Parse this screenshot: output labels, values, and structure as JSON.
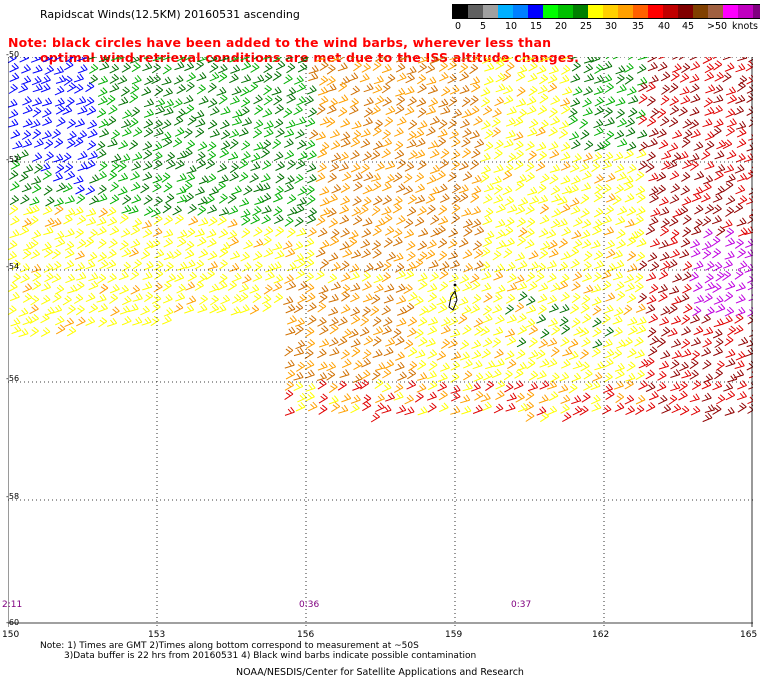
{
  "title": "Rapidscat Winds(12.5KM) 20160531 ascending",
  "note": {
    "line1": "Note: black circles have been added to the wind barbs, wherever less than",
    "line2": "optimal wind retrieval conditions are met due to the ISS altitude changes."
  },
  "legend": {
    "unit_label": "knots",
    "ticks": [
      "0",
      "5",
      "10",
      "15",
      "20",
      "25",
      "30",
      "35",
      "40",
      "45",
      ">50"
    ],
    "colors": [
      "#000000",
      "#606060",
      "#a0a0a0",
      "#00b0ff",
      "#0080ff",
      "#0000ff",
      "#00ff00",
      "#00c000",
      "#008000",
      "#ffff00",
      "#ffd000",
      "#ffa000",
      "#ff6000",
      "#ff0000",
      "#c00000",
      "#800000",
      "#804000",
      "#a06040",
      "#ff00ff",
      "#c000c0",
      "#800080",
      "#400040"
    ]
  },
  "axes": {
    "lat_labels": [
      "-50",
      "-52",
      "-54",
      "-56",
      "-58",
      "-60"
    ],
    "lon_labels": [
      "150",
      "153",
      "156",
      "159",
      "162",
      "165"
    ],
    "time_labels": [
      "2:11",
      "0:36",
      "0:37"
    ]
  },
  "footnote": {
    "line1": "Note: 1) Times are GMT 2)Times along bottom correspond to measurement at ~50S",
    "line2": "3)Data buffer is 22 hrs from 20160531 4) Black wind barbs indicate possible contamination"
  },
  "credit": "NOAA/NESDIS/Center for Satellite Applications and Research",
  "map_colors": {
    "blue": "#0000ff",
    "green": "#00b000",
    "dark_green": "#007000",
    "yellow": "#ffff00",
    "orange": "#ffa000",
    "dark_orange": "#d07000",
    "red": "#e00000",
    "dark_red": "#900000",
    "purple": "#c000e0",
    "black": "#000000"
  }
}
